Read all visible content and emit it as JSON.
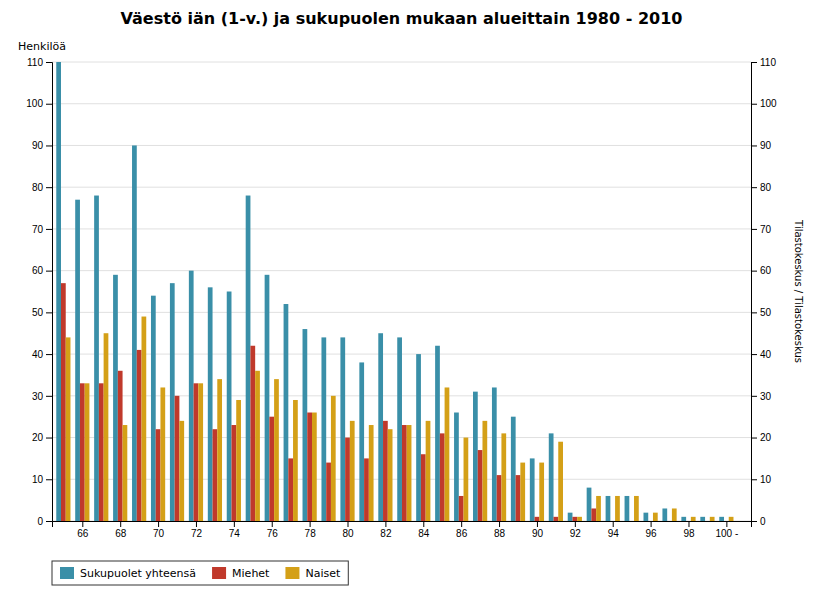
{
  "chart_data": {
    "type": "bar",
    "title": "Väestö iän (1-v.) ja sukupuolen mukaan alueittain 1980 - 2010",
    "ylabel": "Henkilöä",
    "y2label": "Tilastokeskus / Tilastokeskus",
    "x": [
      65,
      66,
      67,
      68,
      69,
      70,
      71,
      72,
      73,
      74,
      75,
      76,
      77,
      78,
      79,
      80,
      81,
      82,
      83,
      84,
      85,
      86,
      87,
      88,
      89,
      90,
      91,
      92,
      93,
      94,
      95,
      96,
      97,
      98,
      99,
      100
    ],
    "series": [
      {
        "name": "Sukupuolet yhteensä",
        "color": "#3a8fa8",
        "values": [
          110,
          77,
          78,
          59,
          90,
          54,
          57,
          60,
          56,
          55,
          78,
          59,
          52,
          46,
          44,
          44,
          38,
          45,
          44,
          40,
          42,
          26,
          31,
          32,
          25,
          15,
          21,
          2,
          8,
          6,
          6,
          2,
          3,
          1,
          1,
          1
        ]
      },
      {
        "name": "Miehet",
        "color": "#c0392b",
        "values": [
          57,
          33,
          33,
          36,
          41,
          22,
          30,
          33,
          22,
          23,
          42,
          25,
          15,
          26,
          14,
          20,
          15,
          24,
          23,
          16,
          21,
          6,
          17,
          11,
          11,
          1,
          1,
          1,
          3,
          0,
          0,
          0,
          0,
          0,
          0,
          0
        ]
      },
      {
        "name": "Naiset",
        "color": "#d4a017",
        "values": [
          44,
          33,
          45,
          23,
          49,
          32,
          24,
          33,
          34,
          29,
          36,
          34,
          29,
          26,
          30,
          24,
          23,
          22,
          23,
          24,
          32,
          20,
          24,
          21,
          14,
          14,
          19,
          1,
          6,
          6,
          6,
          2,
          3,
          1,
          1,
          1
        ]
      }
    ],
    "xlim": [
      64.4,
      101.3
    ],
    "xticks": [
      66,
      68,
      70,
      72,
      74,
      76,
      78,
      80,
      82,
      84,
      86,
      88,
      90,
      92,
      94,
      96,
      98,
      {
        "value": 100,
        "label": "100 -"
      }
    ],
    "ylim": [
      0,
      110
    ],
    "yticks": [
      0,
      10,
      20,
      30,
      40,
      50,
      60,
      70,
      80,
      90,
      100,
      110
    ],
    "y2lim": [
      0,
      110
    ],
    "y2ticks": [
      0,
      10,
      20,
      30,
      40,
      50,
      60,
      70,
      80,
      90,
      100,
      110
    ],
    "grid": true,
    "legend": "bottom"
  }
}
